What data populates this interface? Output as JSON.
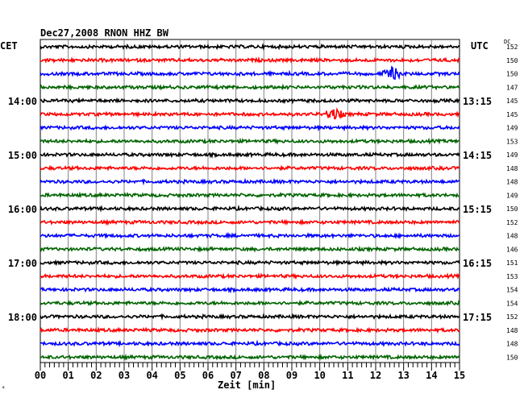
{
  "header": {
    "title": "Dec27,2008   RNON HHZ BW",
    "left_axis_label": "CET",
    "right_axis_label": "UTC",
    "right_col_label": "DC"
  },
  "footer": {
    "corner_mark": "*"
  },
  "chart_data": {
    "type": "line",
    "title": "Dec27,2008   RNON HHZ BW",
    "xlabel": "Zeit [min]",
    "x_ticks": [
      "00",
      "01",
      "02",
      "03",
      "04",
      "05",
      "06",
      "07",
      "08",
      "09",
      "10",
      "11",
      "12",
      "13",
      "14",
      "15"
    ],
    "xlim": [
      0,
      15
    ],
    "grid": true,
    "left_time_labels": [
      {
        "label": "14:00",
        "row": 4
      },
      {
        "label": "15:00",
        "row": 8
      },
      {
        "label": "16:00",
        "row": 12
      },
      {
        "label": "17:00",
        "row": 16
      },
      {
        "label": "18:00",
        "row": 20
      }
    ],
    "right_time_labels": [
      {
        "label": "13:15",
        "row": 4
      },
      {
        "label": "14:15",
        "row": 8
      },
      {
        "label": "15:15",
        "row": 12
      },
      {
        "label": "16:15",
        "row": 16
      },
      {
        "label": "17:15",
        "row": 20
      }
    ],
    "trace_colors": [
      "#000000",
      "#ff0000",
      "#0000ff",
      "#006400"
    ],
    "dc_offsets": [
      152,
      150,
      150,
      147,
      145,
      145,
      149,
      153,
      149,
      148,
      148,
      149,
      150,
      152,
      148,
      146,
      151,
      153,
      154,
      154,
      152,
      148,
      148,
      150
    ],
    "events": [
      {
        "row": 2,
        "minute": 12.6,
        "amplitude": 7
      },
      {
        "row": 5,
        "minute": 10.5,
        "amplitude": 6
      }
    ]
  }
}
